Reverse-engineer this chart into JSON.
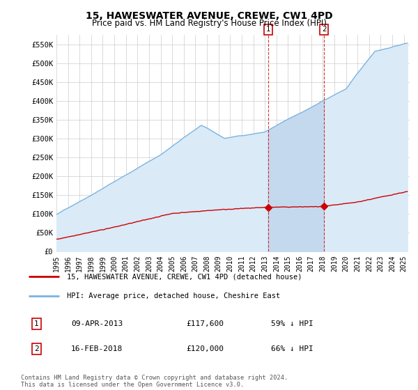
{
  "title": "15, HAWESWATER AVENUE, CREWE, CW1 4PD",
  "subtitle": "Price paid vs. HM Land Registry's House Price Index (HPI)",
  "title_fontsize": 10,
  "subtitle_fontsize": 8.5,
  "ylim": [
    0,
    575000
  ],
  "yticks": [
    0,
    50000,
    100000,
    150000,
    200000,
    250000,
    300000,
    350000,
    400000,
    450000,
    500000,
    550000
  ],
  "ytick_labels": [
    "£0",
    "£50K",
    "£100K",
    "£150K",
    "£200K",
    "£250K",
    "£300K",
    "£350K",
    "£400K",
    "£450K",
    "£500K",
    "£550K"
  ],
  "xlim_start": 1995.0,
  "xlim_end": 2025.5,
  "xtick_years": [
    1995,
    1996,
    1997,
    1998,
    1999,
    2000,
    2001,
    2002,
    2003,
    2004,
    2005,
    2006,
    2007,
    2008,
    2009,
    2010,
    2011,
    2012,
    2013,
    2014,
    2015,
    2016,
    2017,
    2018,
    2019,
    2020,
    2021,
    2022,
    2023,
    2024,
    2025
  ],
  "hpi_color": "#7ab4e0",
  "hpi_fill_color": "#daeaf7",
  "hpi_shade_color": "#c5d9ee",
  "price_color": "#cc0000",
  "marker_color": "#cc0000",
  "legend_label_price": "15, HAWESWATER AVENUE, CREWE, CW1 4PD (detached house)",
  "legend_label_hpi": "HPI: Average price, detached house, Cheshire East",
  "sale1_label": "1",
  "sale1_date": "09-APR-2013",
  "sale1_price": "£117,600",
  "sale1_pct": "59% ↓ HPI",
  "sale1_year": 2013.27,
  "sale1_value": 117600,
  "sale2_label": "2",
  "sale2_date": "16-FEB-2018",
  "sale2_price": "£120,000",
  "sale2_pct": "66% ↓ HPI",
  "sale2_year": 2018.12,
  "sale2_value": 120000,
  "footnote": "Contains HM Land Registry data © Crown copyright and database right 2024.\nThis data is licensed under the Open Government Licence v3.0.",
  "background_color": "#ffffff",
  "grid_color": "#cccccc"
}
